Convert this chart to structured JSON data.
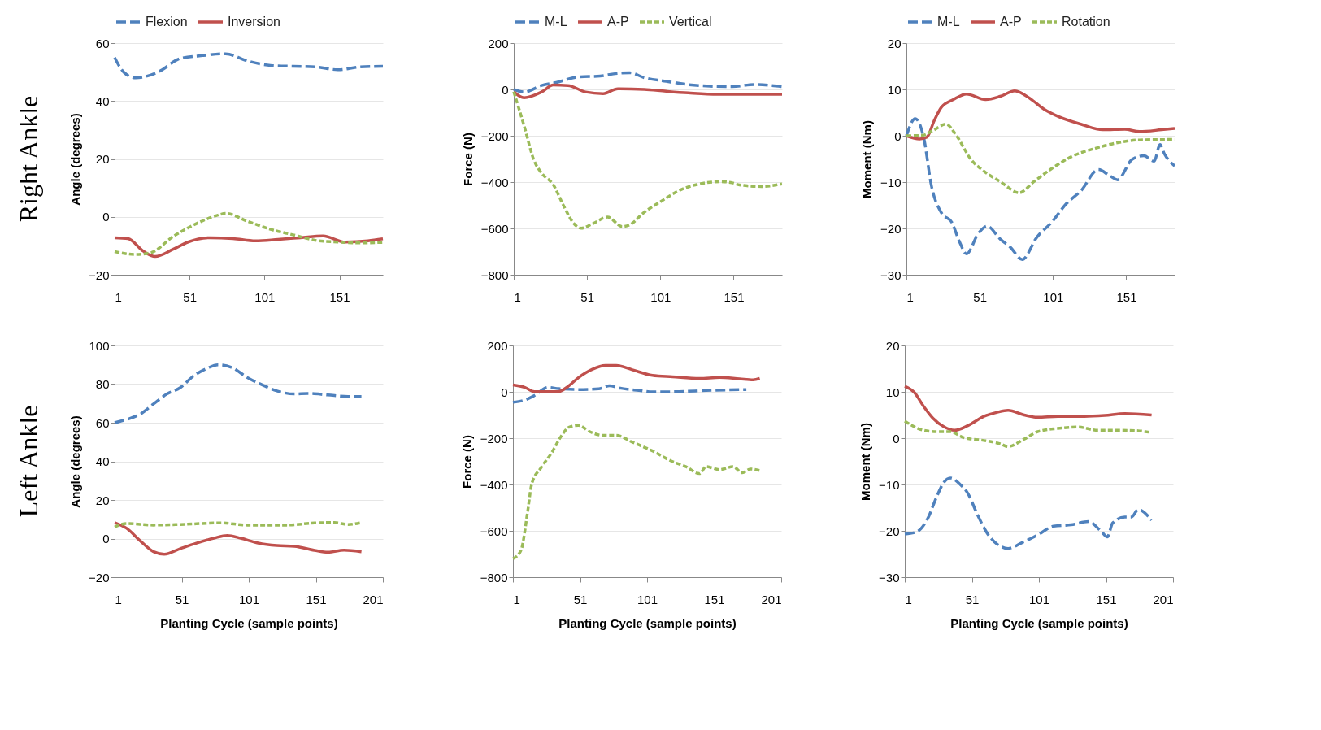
{
  "chart_data": [
    {
      "type": "line",
      "ylabel": "Angle (degrees)",
      "annotations": [
        "Right Ankle"
      ],
      "xlim": [
        1,
        180
      ],
      "xticks": [
        1,
        51,
        101,
        151
      ],
      "ylim": [
        -20,
        60
      ],
      "yticks": [
        -20,
        0,
        20,
        40,
        60
      ],
      "grid": "y",
      "legend": "top",
      "series": [
        {
          "name": "Flexion",
          "color": "#4f81bd",
          "line_style": "dashed",
          "x": [
            1,
            7,
            15,
            30,
            45,
            60,
            75,
            90,
            105,
            120,
            135,
            150,
            165,
            180
          ],
          "values": [
            55,
            50,
            48,
            50,
            54.7,
            55.7,
            56.3,
            53.8,
            52.3,
            52,
            51.8,
            50.8,
            51.8,
            52
          ]
        },
        {
          "name": "Inversion",
          "color": "#c0504d",
          "line_style": "solid",
          "x": [
            1,
            10,
            20,
            28,
            40,
            50,
            65,
            80,
            95,
            110,
            125,
            140,
            155,
            170,
            180
          ],
          "values": [
            -7.2,
            -7.5,
            -11.8,
            -13.7,
            -11.2,
            -8.7,
            -7.2,
            -7.5,
            -8.3,
            -7.8,
            -7.2,
            -6.6,
            -8.7,
            -8.3,
            -7.6
          ]
        },
        {
          "color": "#9bbb59",
          "line_style": "dotted",
          "x": [
            1,
            15,
            25,
            40,
            55,
            70,
            75,
            90,
            105,
            120,
            135,
            150,
            165,
            180
          ],
          "values": [
            -12,
            -13,
            -12.4,
            -6.8,
            -2.5,
            0.6,
            1.2,
            -1.6,
            -4.3,
            -6.2,
            -8.1,
            -8.7,
            -9,
            -8.8
          ]
        }
      ]
    },
    {
      "type": "line",
      "ylabel": "Force (N)",
      "xlim": [
        1,
        184
      ],
      "xticks": [
        1,
        51,
        101,
        151
      ],
      "ylim": [
        -800,
        200
      ],
      "yticks": [
        -800,
        -600,
        -400,
        -200,
        0,
        200
      ],
      "grid": "y",
      "legend": "top",
      "series": [
        {
          "name": "M-L",
          "color": "#4f81bd",
          "line_style": "dashed",
          "x": [
            1,
            8,
            20,
            30,
            45,
            60,
            70,
            80,
            90,
            105,
            120,
            135,
            150,
            165,
            184
          ],
          "values": [
            0,
            -11,
            17,
            30,
            54,
            58,
            68,
            72,
            51,
            35,
            21,
            14,
            12,
            21,
            12
          ]
        },
        {
          "name": "A-P",
          "color": "#c0504d",
          "line_style": "solid",
          "x": [
            1,
            8,
            20,
            28,
            38,
            50,
            62,
            72,
            90,
            105,
            120,
            140,
            160,
            184
          ],
          "values": [
            -10,
            -36,
            -11,
            19,
            17,
            -11,
            -18,
            3,
            0,
            -8,
            -15,
            -21,
            -21,
            -21
          ]
        },
        {
          "name": "Vertical",
          "color": "#9bbb59",
          "line_style": "dotted",
          "x": [
            1,
            8,
            15,
            20,
            28,
            35,
            42,
            47,
            55,
            65,
            75,
            80,
            90,
            100,
            115,
            130,
            142,
            150,
            155,
            170,
            184
          ],
          "values": [
            -10,
            -156,
            -309,
            -361,
            -412,
            -502,
            -579,
            -599,
            -579,
            -551,
            -592,
            -585,
            -530,
            -489,
            -433,
            -405,
            -398,
            -403,
            -412,
            -419,
            -408
          ]
        }
      ]
    },
    {
      "type": "line",
      "ylabel": "Moment (Nm)",
      "xlim": [
        1,
        184
      ],
      "xticks": [
        1,
        51,
        101,
        151
      ],
      "ylim": [
        -30,
        20
      ],
      "yticks": [
        -30,
        -20,
        -10,
        0,
        10,
        20
      ],
      "grid": "y",
      "legend": "top",
      "series": [
        {
          "name": "M-L",
          "color": "#4f81bd",
          "line_style": "dashed",
          "x": [
            1,
            7,
            13,
            18,
            25,
            32,
            37,
            42,
            50,
            56,
            65,
            72,
            80,
            90,
            100,
            110,
            120,
            132,
            140,
            145,
            155,
            163,
            170,
            174,
            177,
            184
          ],
          "values": [
            0,
            3.7,
            -0.7,
            -10.7,
            -16.7,
            -18.7,
            -22.7,
            -25.5,
            -21.1,
            -19.5,
            -22.3,
            -24.1,
            -26.7,
            -21.9,
            -18.7,
            -14.7,
            -11.9,
            -7.3,
            -8.7,
            -9.5,
            -5.1,
            -4.3,
            -5.5,
            -1.9,
            -3.9,
            -6.5
          ]
        },
        {
          "name": "A-P",
          "color": "#c0504d",
          "line_style": "solid",
          "x": [
            1,
            10,
            15,
            20,
            25,
            33,
            42,
            55,
            65,
            75,
            85,
            95,
            105,
            120,
            135,
            150,
            160,
            175,
            184
          ],
          "values": [
            0,
            -0.7,
            -0.3,
            3.3,
            6.2,
            7.8,
            9,
            7.8,
            8.5,
            9.7,
            8.1,
            5.7,
            4.1,
            2.5,
            1.3,
            1.4,
            0.9,
            1.3,
            1.6
          ]
        },
        {
          "name": "Rotation",
          "color": "#9bbb59",
          "line_style": "dotted",
          "x": [
            1,
            12,
            20,
            28,
            35,
            45,
            55,
            65,
            78,
            88,
            100,
            115,
            130,
            145,
            160,
            184
          ],
          "values": [
            0,
            0.1,
            1.3,
            2.5,
            0.1,
            -5.1,
            -7.9,
            -9.9,
            -12.3,
            -9.9,
            -7.1,
            -4.3,
            -2.7,
            -1.5,
            -0.9,
            -0.8
          ]
        }
      ]
    },
    {
      "type": "line",
      "xlabel": "Planting Cycle (sample points)",
      "ylabel": "Angle (degrees)",
      "annotations": [
        "Left Ankle"
      ],
      "xlim": [
        1,
        201
      ],
      "xticks": [
        1,
        51,
        101,
        151,
        201
      ],
      "ylim": [
        -20,
        100
      ],
      "yticks": [
        -20,
        0,
        20,
        40,
        60,
        80,
        100
      ],
      "grid": "y",
      "series": [
        {
          "color": "#4f81bd",
          "line_style": "dashed",
          "x": [
            1,
            10,
            20,
            30,
            40,
            50,
            60,
            70,
            78,
            88,
            100,
            112,
            122,
            135,
            145,
            160,
            175,
            185
          ],
          "values": [
            60,
            61.7,
            64.4,
            69.7,
            74.9,
            78.2,
            84.3,
            88.2,
            90,
            88.7,
            83.4,
            79.3,
            76.5,
            74.9,
            75.2,
            74.4,
            73.6,
            73.6
          ]
        },
        {
          "color": "#c0504d",
          "line_style": "solid",
          "x": [
            1,
            10,
            20,
            30,
            38,
            50,
            62,
            75,
            85,
            95,
            108,
            122,
            135,
            150,
            160,
            172,
            185
          ],
          "values": [
            8.3,
            5.3,
            -1.1,
            -6.8,
            -8.1,
            -5.2,
            -2.4,
            0.2,
            1.6,
            0.2,
            -2.3,
            -3.6,
            -4,
            -6.1,
            -7.1,
            -6,
            -6.8
          ]
        },
        {
          "color": "#9bbb59",
          "line_style": "dotted",
          "x": [
            1,
            10,
            30,
            50,
            80,
            100,
            130,
            150,
            165,
            175,
            185
          ],
          "values": [
            6,
            7.8,
            7,
            7.3,
            8.1,
            7,
            7,
            8.1,
            8.3,
            7.3,
            8.3
          ]
        }
      ]
    },
    {
      "type": "line",
      "xlabel": "Planting Cycle (sample points)",
      "ylabel": "Force (N)",
      "xlim": [
        1,
        201
      ],
      "xticks": [
        1,
        51,
        101,
        151,
        201
      ],
      "ylim": [
        -800,
        200
      ],
      "yticks": [
        -800,
        -600,
        -400,
        -200,
        0,
        200
      ],
      "grid": "y",
      "series": [
        {
          "color": "#4f81bd",
          "line_style": "dashed",
          "x": [
            1,
            10,
            17,
            27,
            35,
            50,
            65,
            73,
            80,
            95,
            105,
            125,
            145,
            175
          ],
          "values": [
            -45,
            -35,
            -16,
            19,
            14,
            10,
            13,
            26,
            17,
            6,
            0,
            1,
            6,
            10
          ]
        },
        {
          "color": "#c0504d",
          "line_style": "solid",
          "x": [
            1,
            10,
            17,
            25,
            35,
            42,
            50,
            60,
            70,
            78,
            90,
            105,
            120,
            140,
            155,
            170,
            180,
            185
          ],
          "values": [
            30,
            19,
            1,
            1,
            1,
            23,
            62,
            97,
            114,
            114,
            95,
            71,
            65,
            58,
            62,
            56,
            52,
            58
          ]
        },
        {
          "color": "#9bbb59",
          "line_style": "dotted",
          "x": [
            1,
            7,
            12,
            15,
            22,
            30,
            37,
            43,
            50,
            58,
            68,
            78,
            90,
            105,
            120,
            130,
            140,
            145,
            155,
            165,
            172,
            178,
            185
          ],
          "values": [
            -720,
            -684,
            -515,
            -398,
            -327,
            -262,
            -191,
            -152,
            -145,
            -171,
            -188,
            -188,
            -217,
            -255,
            -301,
            -323,
            -353,
            -323,
            -336,
            -323,
            -349,
            -333,
            -340
          ]
        }
      ]
    },
    {
      "type": "line",
      "xlabel": "Planting Cycle (sample points)",
      "ylabel": "Moment (Nm)",
      "xlim": [
        1,
        201
      ],
      "xticks": [
        1,
        51,
        101,
        151,
        201
      ],
      "ylim": [
        -30,
        20
      ],
      "yticks": [
        -30,
        -20,
        -10,
        0,
        10,
        20
      ],
      "grid": "y",
      "series": [
        {
          "color": "#4f81bd",
          "line_style": "dashed",
          "x": [
            1,
            10,
            18,
            25,
            30,
            35,
            42,
            48,
            55,
            62,
            70,
            78,
            88,
            100,
            112,
            125,
            138,
            148,
            152,
            156,
            165,
            170,
            175,
            185
          ],
          "values": [
            -20.7,
            -20.2,
            -17.4,
            -12.5,
            -9.6,
            -8.6,
            -9.9,
            -11.9,
            -16.4,
            -20.3,
            -22.9,
            -23.8,
            -22.6,
            -20.9,
            -19,
            -18.7,
            -18,
            -20.3,
            -21.3,
            -18.3,
            -17,
            -17,
            -15.4,
            -17.7
          ]
        },
        {
          "color": "#c0504d",
          "line_style": "solid",
          "x": [
            1,
            8,
            15,
            22,
            30,
            38,
            48,
            60,
            70,
            78,
            90,
            100,
            115,
            135,
            150,
            165,
            185
          ],
          "values": [
            11.2,
            9.9,
            6.9,
            4.3,
            2.5,
            1.7,
            2.7,
            4.7,
            5.6,
            6,
            5,
            4.5,
            4.7,
            4.7,
            4.9,
            5.3,
            5
          ]
        },
        {
          "color": "#9bbb59",
          "line_style": "dotted",
          "x": [
            1,
            15,
            25,
            35,
            45,
            60,
            72,
            78,
            90,
            100,
            115,
            130,
            145,
            160,
            175,
            185
          ],
          "values": [
            3.7,
            1.7,
            1.4,
            1.4,
            0.1,
            -0.5,
            -1.2,
            -1.8,
            -0.2,
            1.4,
            2.1,
            2.4,
            1.7,
            1.7,
            1.6,
            1.2
          ]
        }
      ]
    }
  ]
}
